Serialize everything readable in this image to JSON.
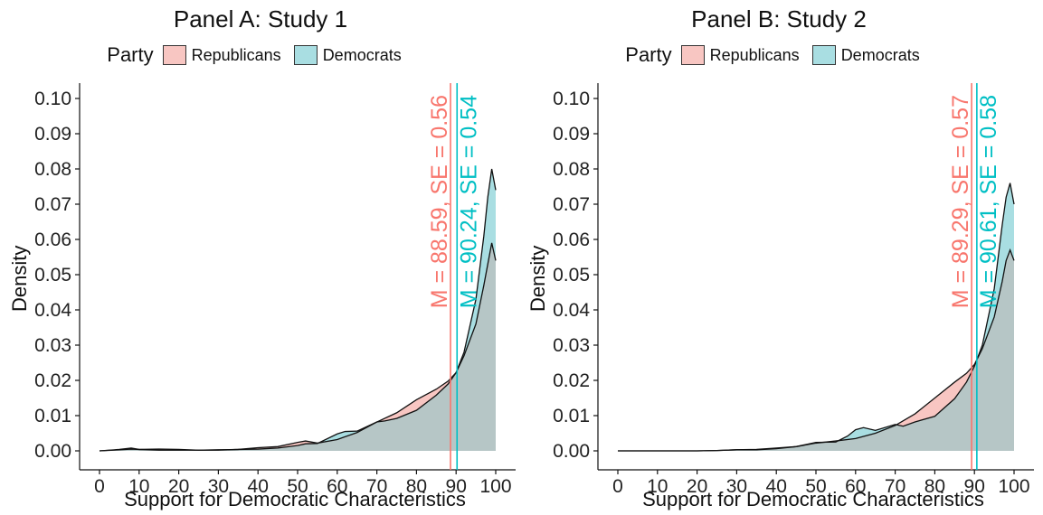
{
  "colors": {
    "republicans": "#F8766D",
    "democrats": "#00BFC4",
    "republicans_fill": "#F8C6C2",
    "democrats_fill": "#A9DEE2",
    "overlap": "#B6C6C6"
  },
  "chart_data": [
    {
      "type": "area",
      "title": "Panel A: Study 1",
      "legend_title": "Party",
      "legend_position": "top",
      "xlabel": "Support for Democratic Characteristics",
      "ylabel": "Density",
      "xlim": [
        0,
        100
      ],
      "ylim": [
        0,
        0.1
      ],
      "xticks": [
        "0",
        "10",
        "20",
        "30",
        "40",
        "50",
        "60",
        "70",
        "80",
        "90",
        "100"
      ],
      "yticks": [
        "0.00",
        "0.01",
        "0.02",
        "0.03",
        "0.04",
        "0.05",
        "0.06",
        "0.07",
        "0.08",
        "0.09",
        "0.10"
      ],
      "grid": false,
      "series": [
        {
          "name": "Republicans",
          "key": "republicans",
          "x": [
            0,
            5,
            8,
            10,
            15,
            20,
            25,
            30,
            35,
            40,
            45,
            50,
            52,
            55,
            60,
            65,
            70,
            75,
            80,
            85,
            88,
            90,
            92,
            95,
            97,
            98,
            99,
            100
          ],
          "y": [
            0,
            0.0003,
            0.0005,
            0.0004,
            0.0005,
            0.0004,
            0.0002,
            0.0002,
            0.0004,
            0.0009,
            0.0012,
            0.0024,
            0.0028,
            0.0022,
            0.0032,
            0.0052,
            0.0082,
            0.0108,
            0.0145,
            0.0175,
            0.0198,
            0.0222,
            0.027,
            0.036,
            0.047,
            0.053,
            0.059,
            0.054
          ],
          "mean_label": "M = 88.59, SE = 0.56",
          "mean": 88.59
        },
        {
          "name": "Democrats",
          "key": "democrats",
          "x": [
            0,
            5,
            8,
            10,
            15,
            20,
            25,
            30,
            35,
            40,
            45,
            50,
            52,
            55,
            60,
            62,
            65,
            70,
            72,
            75,
            80,
            85,
            88,
            90,
            92,
            95,
            97,
            98,
            99,
            100
          ],
          "y": [
            0,
            0.0004,
            0.0008,
            0.0004,
            0.0002,
            0.0002,
            0.0002,
            0.0003,
            0.0004,
            0.0005,
            0.0008,
            0.0015,
            0.002,
            0.0021,
            0.0048,
            0.0055,
            0.0056,
            0.0082,
            0.0085,
            0.0092,
            0.0115,
            0.0158,
            0.019,
            0.0222,
            0.028,
            0.043,
            0.061,
            0.072,
            0.08,
            0.074
          ],
          "mean_label": "M = 90.24, SE = 0.54",
          "mean": 90.24
        }
      ]
    },
    {
      "type": "area",
      "title": "Panel B: Study 2",
      "legend_title": "Party",
      "legend_position": "top",
      "xlabel": "Support for Democratic Characteristics",
      "ylabel": "Density",
      "xlim": [
        0,
        100
      ],
      "ylim": [
        0,
        0.1
      ],
      "xticks": [
        "0",
        "10",
        "20",
        "30",
        "40",
        "50",
        "60",
        "70",
        "80",
        "90",
        "100"
      ],
      "yticks": [
        "0.00",
        "0.01",
        "0.02",
        "0.03",
        "0.04",
        "0.05",
        "0.06",
        "0.07",
        "0.08",
        "0.09",
        "0.10"
      ],
      "grid": false,
      "series": [
        {
          "name": "Republicans",
          "key": "republicans",
          "x": [
            0,
            10,
            20,
            25,
            30,
            35,
            40,
            45,
            50,
            55,
            60,
            65,
            70,
            75,
            80,
            85,
            88,
            90,
            92,
            95,
            97,
            98,
            99,
            100
          ],
          "y": [
            0,
            0,
            0,
            0.0001,
            0.0003,
            0.0004,
            0.0008,
            0.0012,
            0.0022,
            0.0028,
            0.0035,
            0.005,
            0.0072,
            0.0105,
            0.015,
            0.0195,
            0.022,
            0.0245,
            0.029,
            0.038,
            0.048,
            0.054,
            0.057,
            0.054
          ],
          "mean_label": "M = 89.29, SE = 0.57",
          "mean": 89.29
        },
        {
          "name": "Democrats",
          "key": "democrats",
          "x": [
            0,
            10,
            20,
            25,
            30,
            35,
            40,
            45,
            50,
            55,
            58,
            60,
            62,
            65,
            70,
            72,
            75,
            80,
            85,
            88,
            90,
            92,
            95,
            97,
            98,
            99,
            100
          ],
          "y": [
            0,
            0,
            0,
            0.0001,
            0.0003,
            0.0003,
            0.0006,
            0.0012,
            0.0024,
            0.0025,
            0.0042,
            0.006,
            0.0066,
            0.0058,
            0.0075,
            0.007,
            0.0082,
            0.0098,
            0.0148,
            0.0195,
            0.024,
            0.03,
            0.046,
            0.064,
            0.072,
            0.076,
            0.07
          ],
          "mean_label": "M = 90.61, SE = 0.58",
          "mean": 90.61
        }
      ]
    }
  ]
}
